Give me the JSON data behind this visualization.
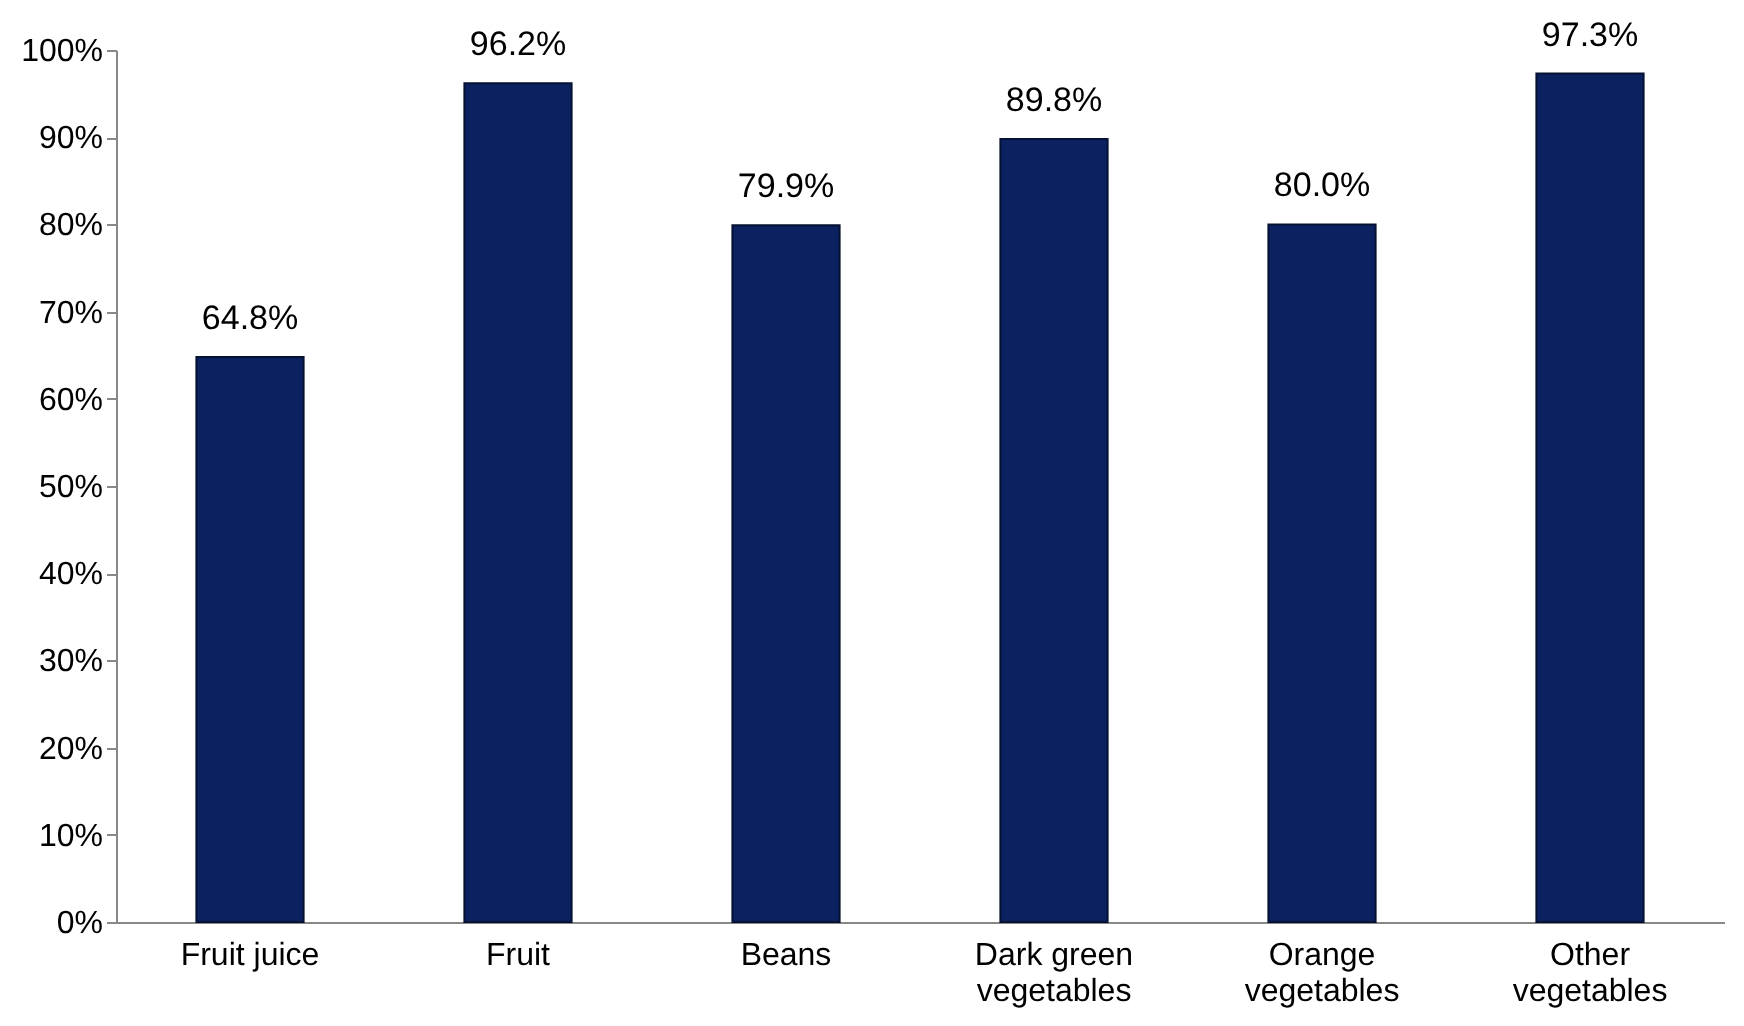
{
  "chart_data": {
    "type": "bar",
    "categories": [
      "Fruit juice",
      "Fruit",
      "Beans",
      "Dark green vegetables",
      "Orange vegetables",
      "Other vegetables"
    ],
    "values": [
      64.8,
      96.2,
      79.9,
      89.8,
      80.0,
      97.3
    ],
    "value_labels": [
      "64.8%",
      "96.2%",
      "79.9%",
      "89.8%",
      "80.0%",
      "97.3%"
    ],
    "color": "#0b2160",
    "ylim": [
      0,
      100
    ],
    "yticks": [
      {
        "value": 0,
        "label": "0%"
      },
      {
        "value": 10,
        "label": "10%"
      },
      {
        "value": 20,
        "label": "20%"
      },
      {
        "value": 30,
        "label": "30%"
      },
      {
        "value": 40,
        "label": "40%"
      },
      {
        "value": 50,
        "label": "50%"
      },
      {
        "value": 60,
        "label": "60%"
      },
      {
        "value": 70,
        "label": "70%"
      },
      {
        "value": 80,
        "label": "80%"
      },
      {
        "value": 90,
        "label": "90%"
      },
      {
        "value": 100,
        "label": "100%"
      }
    ],
    "grid": false
  }
}
